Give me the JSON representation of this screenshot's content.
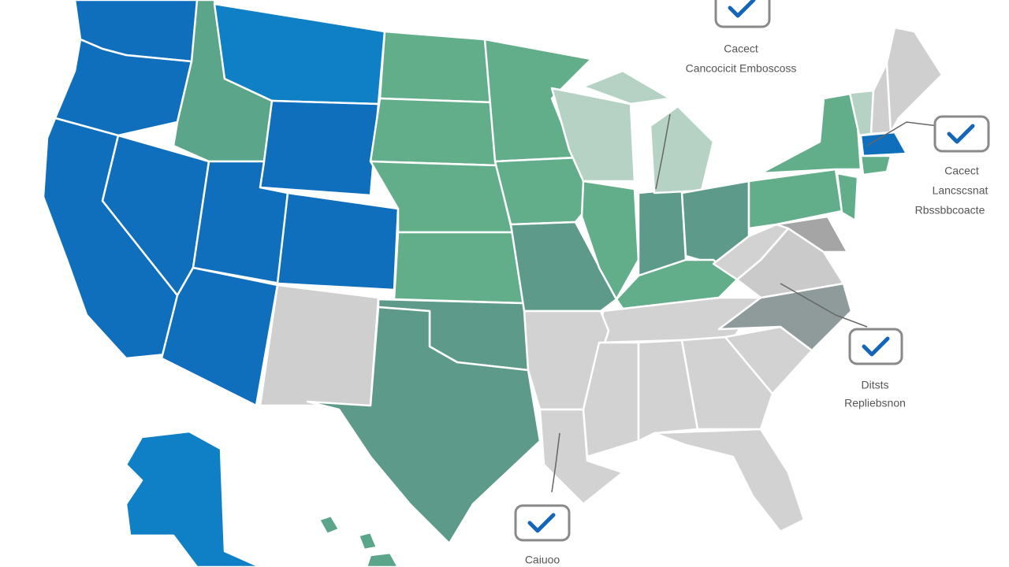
{
  "callouts": [
    {
      "lines": [
        "Cacect",
        "Cancocicit Emboscoss"
      ]
    },
    {
      "lines": [
        "Cacect",
        "Lancscsnat",
        "Rbssbbcoacte"
      ]
    },
    {
      "lines": [
        "Ditsts",
        "Repliebsnon"
      ]
    },
    {
      "lines": [
        "Caiuoo"
      ]
    }
  ]
}
